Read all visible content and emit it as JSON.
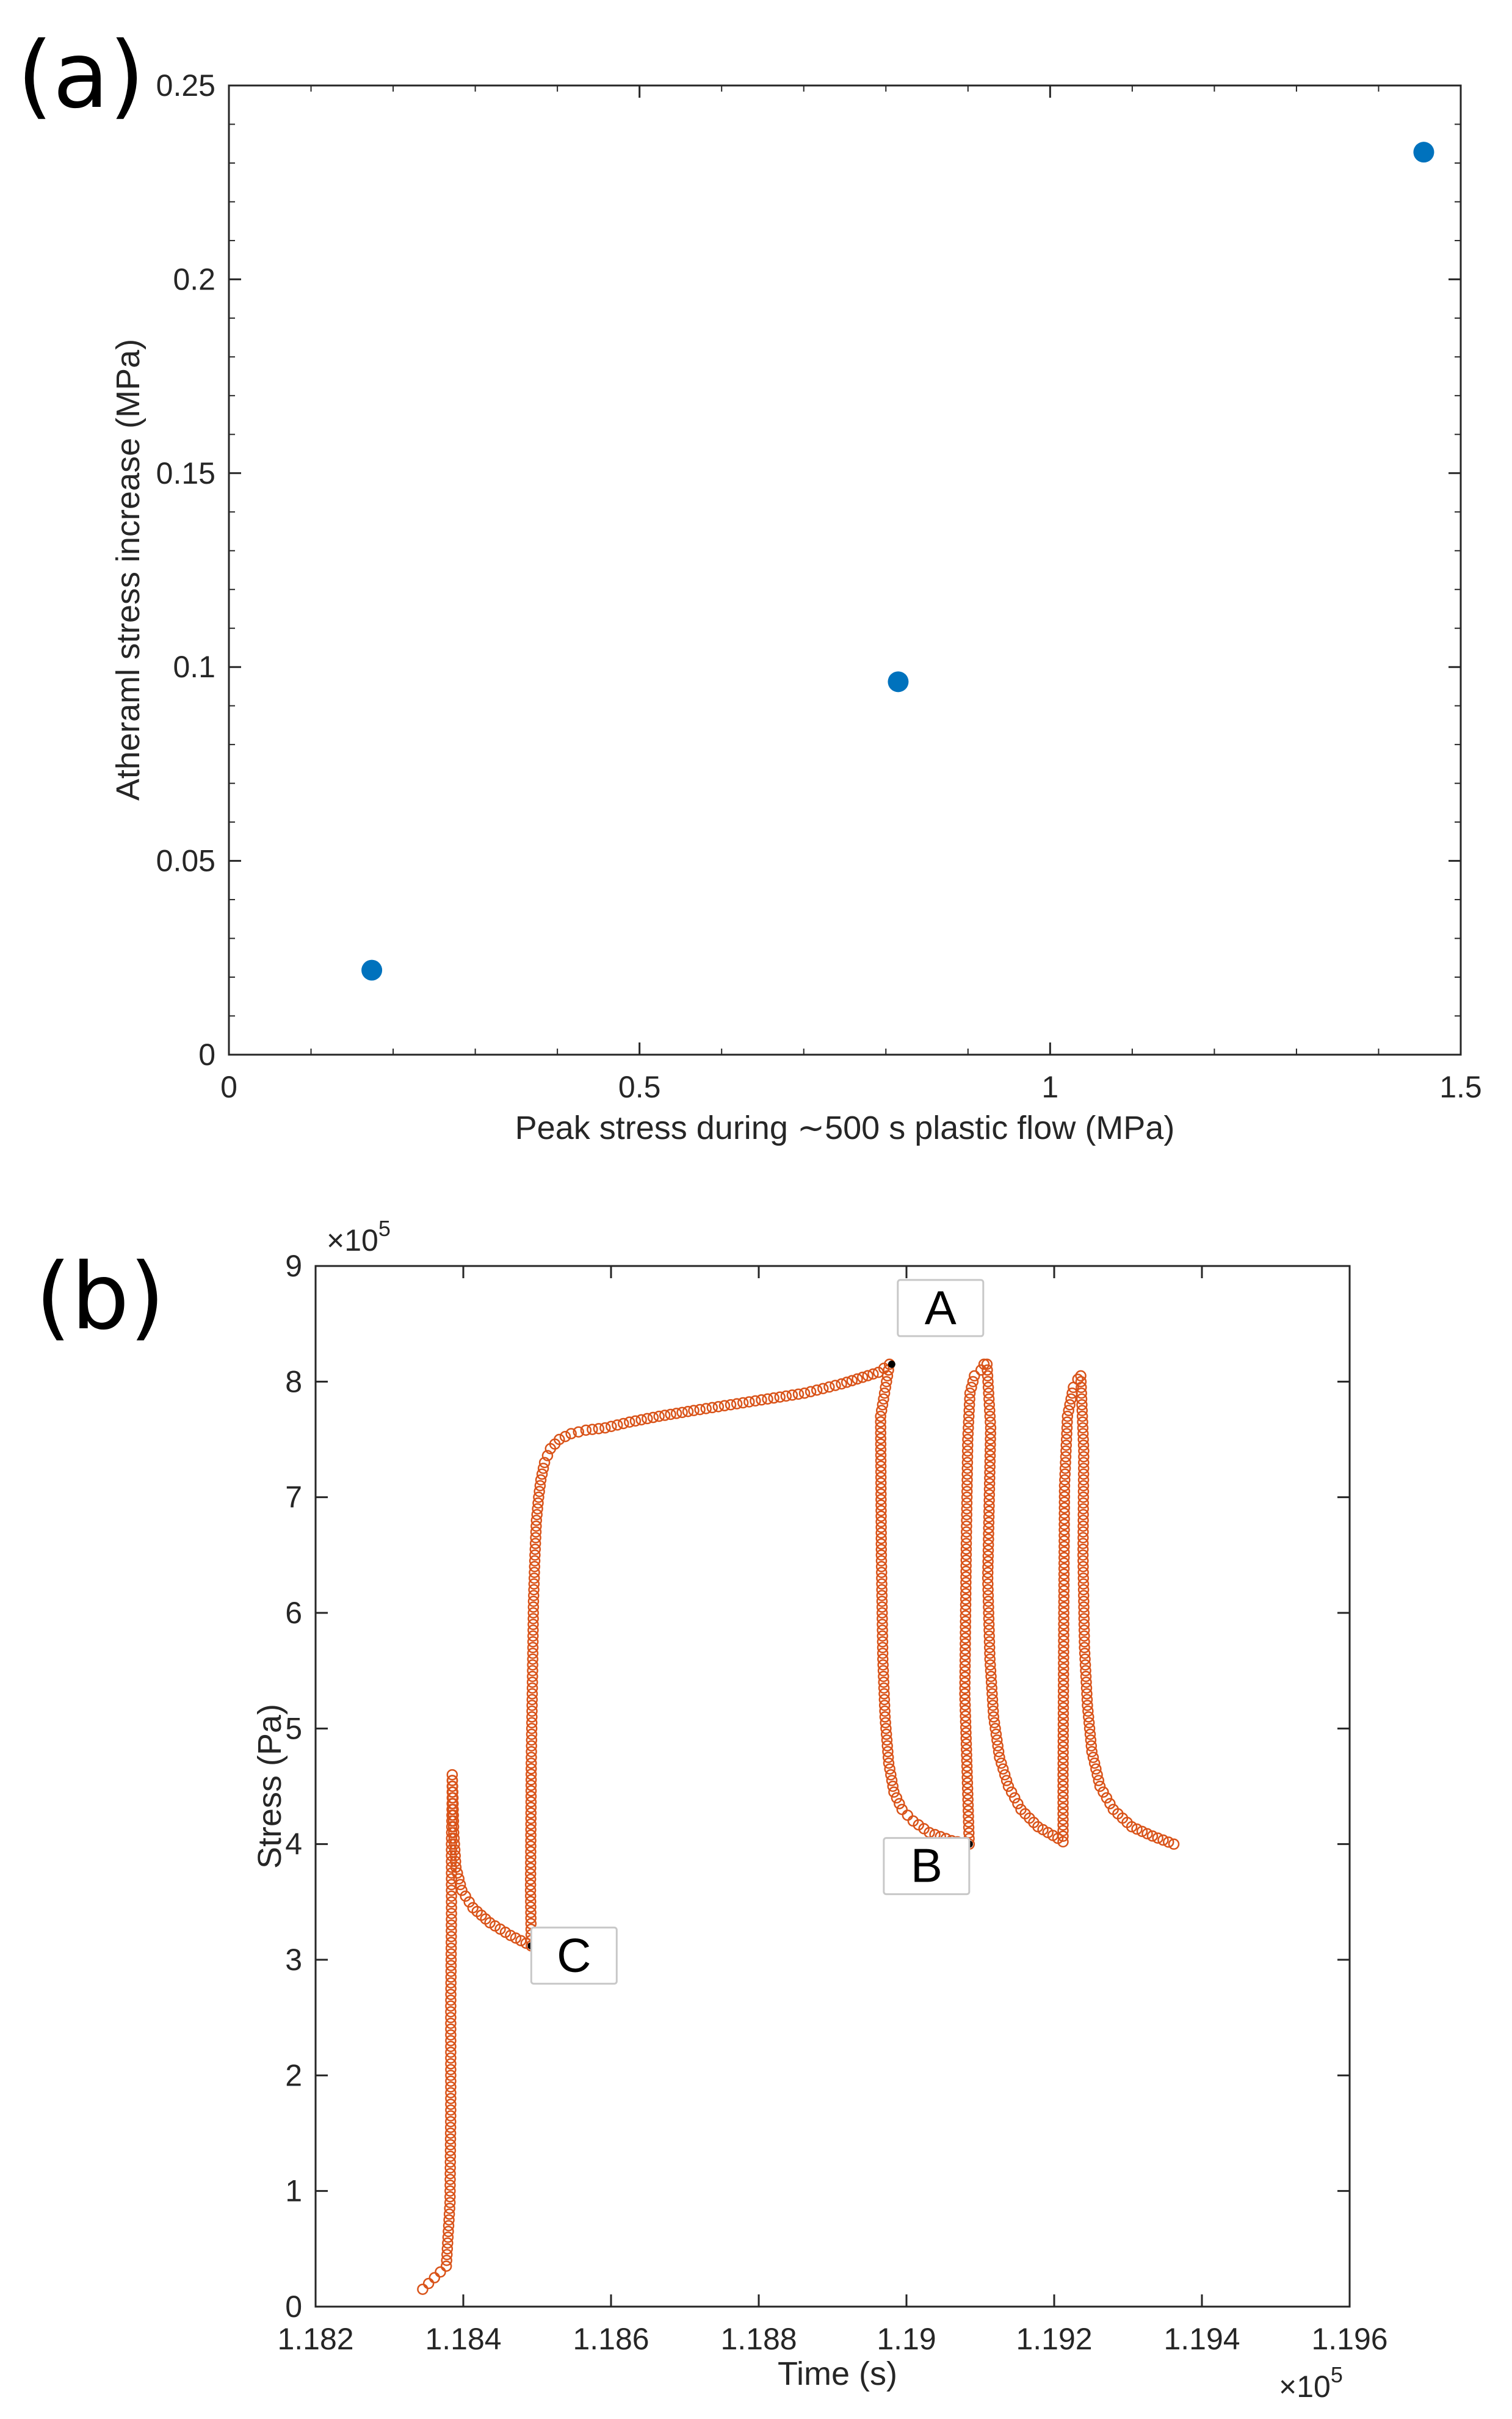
{
  "chart_data": [
    {
      "panel": "(a)",
      "type": "scatter",
      "title": "",
      "xlabel": "Peak stress during ∼500 s plastic flow (MPa)",
      "ylabel": "Atheraml stress increase (MPa)",
      "xlim": [
        0,
        1.5
      ],
      "ylim": [
        0,
        0.25
      ],
      "xticks": [
        0,
        0.5,
        1,
        1.5
      ],
      "xtick_labels": [
        "0",
        "0.5",
        "1",
        "1.5"
      ],
      "yticks": [
        0,
        0.05,
        0.1,
        0.15,
        0.2,
        0.25
      ],
      "ytick_labels": [
        "0",
        "0.05",
        "0.1",
        "0.15",
        "0.2",
        "0.25"
      ],
      "grid": false,
      "series": [
        {
          "name": "atheraml",
          "marker": "filled-circle",
          "color": "#0072BD",
          "x": [
            0.174,
            0.815,
            1.455
          ],
          "y": [
            0.0218,
            0.0962,
            0.2328
          ]
        }
      ]
    },
    {
      "panel": "(b)",
      "type": "scatter",
      "title": "",
      "xlabel": "Time (s)",
      "ylabel": "Stress (Pa)",
      "x_exponent_label": "×10",
      "x_exponent_power": "5",
      "y_exponent_label": "×10",
      "y_exponent_power": "5",
      "xlim": [
        1.182,
        1.196
      ],
      "ylim": [
        0,
        9
      ],
      "xticks": [
        1.182,
        1.184,
        1.186,
        1.188,
        1.19,
        1.192,
        1.194,
        1.196
      ],
      "xtick_labels": [
        "1.182",
        "1.184",
        "1.186",
        "1.188",
        "1.19",
        "1.192",
        "1.194",
        "1.196"
      ],
      "yticks": [
        0,
        1,
        2,
        3,
        4,
        5,
        6,
        7,
        8,
        9
      ],
      "ytick_labels": [
        "0",
        "1",
        "2",
        "3",
        "4",
        "5",
        "6",
        "7",
        "8",
        "9"
      ],
      "grid": false,
      "series": [
        {
          "name": "stress",
          "marker": "open-circle",
          "color": "#D95319",
          "x": [
            1.18345,
            1.18353,
            1.18361,
            1.18369,
            1.18377,
            1.18382,
            1.18383,
            1.18383,
            1.18384,
            1.18384,
            1.18385,
            1.18385,
            1.18386,
            1.18387,
            1.1839,
            1.18398,
            1.18413,
            1.18436,
            1.18464,
            1.18492,
            1.18491,
            1.18492,
            1.18494,
            1.18495,
            1.18497,
            1.18499,
            1.18502,
            1.18505,
            1.1851,
            1.18518,
            1.1853,
            1.18546,
            1.18566,
            1.18592,
            1.18625,
            1.18665,
            1.18712,
            1.18762,
            1.18812,
            1.18862,
            1.18912,
            1.18962,
            1.18977,
            1.18965,
            1.18966,
            1.18968,
            1.18971,
            1.18976,
            1.18983,
            1.18994,
            1.19009,
            1.19031,
            1.19061,
            1.19085,
            1.19079,
            1.19081,
            1.19083,
            1.19086,
            1.19092,
            1.19101,
            1.19105,
            1.19109,
            1.19114,
            1.1911,
            1.19113,
            1.19118,
            1.19126,
            1.19138,
            1.19155,
            1.19178,
            1.19205,
            1.19212,
            1.19212,
            1.19213,
            1.19214,
            1.19218,
            1.19226,
            1.19232,
            1.19236,
            1.1924,
            1.19239,
            1.19241,
            1.19245,
            1.19251,
            1.19262,
            1.1928,
            1.19305,
            1.19333,
            1.19362
          ],
          "y": [
            0.15,
            0.2,
            0.25,
            0.3,
            0.35,
            0.9,
            1.7,
            2.6,
            3.4,
            4.0,
            4.4,
            4.6,
            4.4,
            4.1,
            3.8,
            3.6,
            3.45,
            3.32,
            3.21,
            3.12,
            3.6,
            4.7,
            5.6,
            6.1,
            6.5,
            6.8,
            7.0,
            7.15,
            7.3,
            7.42,
            7.5,
            7.55,
            7.58,
            7.6,
            7.65,
            7.7,
            7.75,
            7.8,
            7.85,
            7.9,
            7.98,
            8.08,
            8.15,
            7.7,
            6.5,
            5.6,
            5.1,
            4.7,
            4.45,
            4.3,
            4.2,
            4.1,
            4.03,
            4.0,
            5.3,
            6.6,
            7.5,
            7.9,
            8.05,
            8.1,
            8.15,
            8.15,
            7.6,
            6.3,
            5.6,
            5.1,
            4.75,
            4.5,
            4.3,
            4.15,
            4.05,
            4.02,
            4.6,
            6.0,
            7.1,
            7.7,
            7.95,
            8.02,
            8.05,
            7.4,
            6.5,
            5.7,
            5.2,
            4.8,
            4.5,
            4.3,
            4.15,
            4.07,
            4.0
          ]
        }
      ],
      "annotations": [
        {
          "label": "A",
          "x": 1.1898,
          "y": 8.15
        },
        {
          "label": "B",
          "x": 1.19085,
          "y": 4.0
        },
        {
          "label": "C",
          "x": 1.18492,
          "y": 3.12
        }
      ]
    }
  ]
}
